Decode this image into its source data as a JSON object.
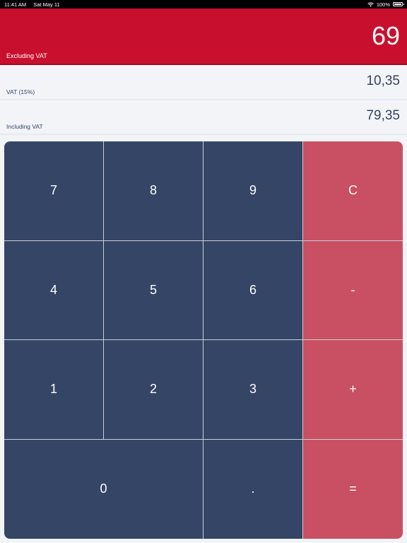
{
  "status_bar": {
    "time": "11:41 AM",
    "date": "Sat May 11",
    "battery": "100%",
    "wifi_icon": "wifi-icon",
    "battery_icon": "battery-icon"
  },
  "excluding": {
    "value": "69",
    "label": "Excluding VAT"
  },
  "vat": {
    "value": "10,35",
    "label": "VAT (15%)"
  },
  "including": {
    "value": "79,35",
    "label": "Including VAT"
  },
  "keypad": {
    "seven": "7",
    "eight": "8",
    "nine": "9",
    "clear": "C",
    "four": "4",
    "five": "5",
    "six": "6",
    "minus": "-",
    "one": "1",
    "two": "2",
    "three": "3",
    "plus": "+",
    "zero": "0",
    "decimal": ".",
    "equals": "="
  },
  "colors": {
    "accent_red": "#c8102e",
    "key_navy": "#354566",
    "key_operator": "#c94f62",
    "background": "#f2f4f8"
  }
}
